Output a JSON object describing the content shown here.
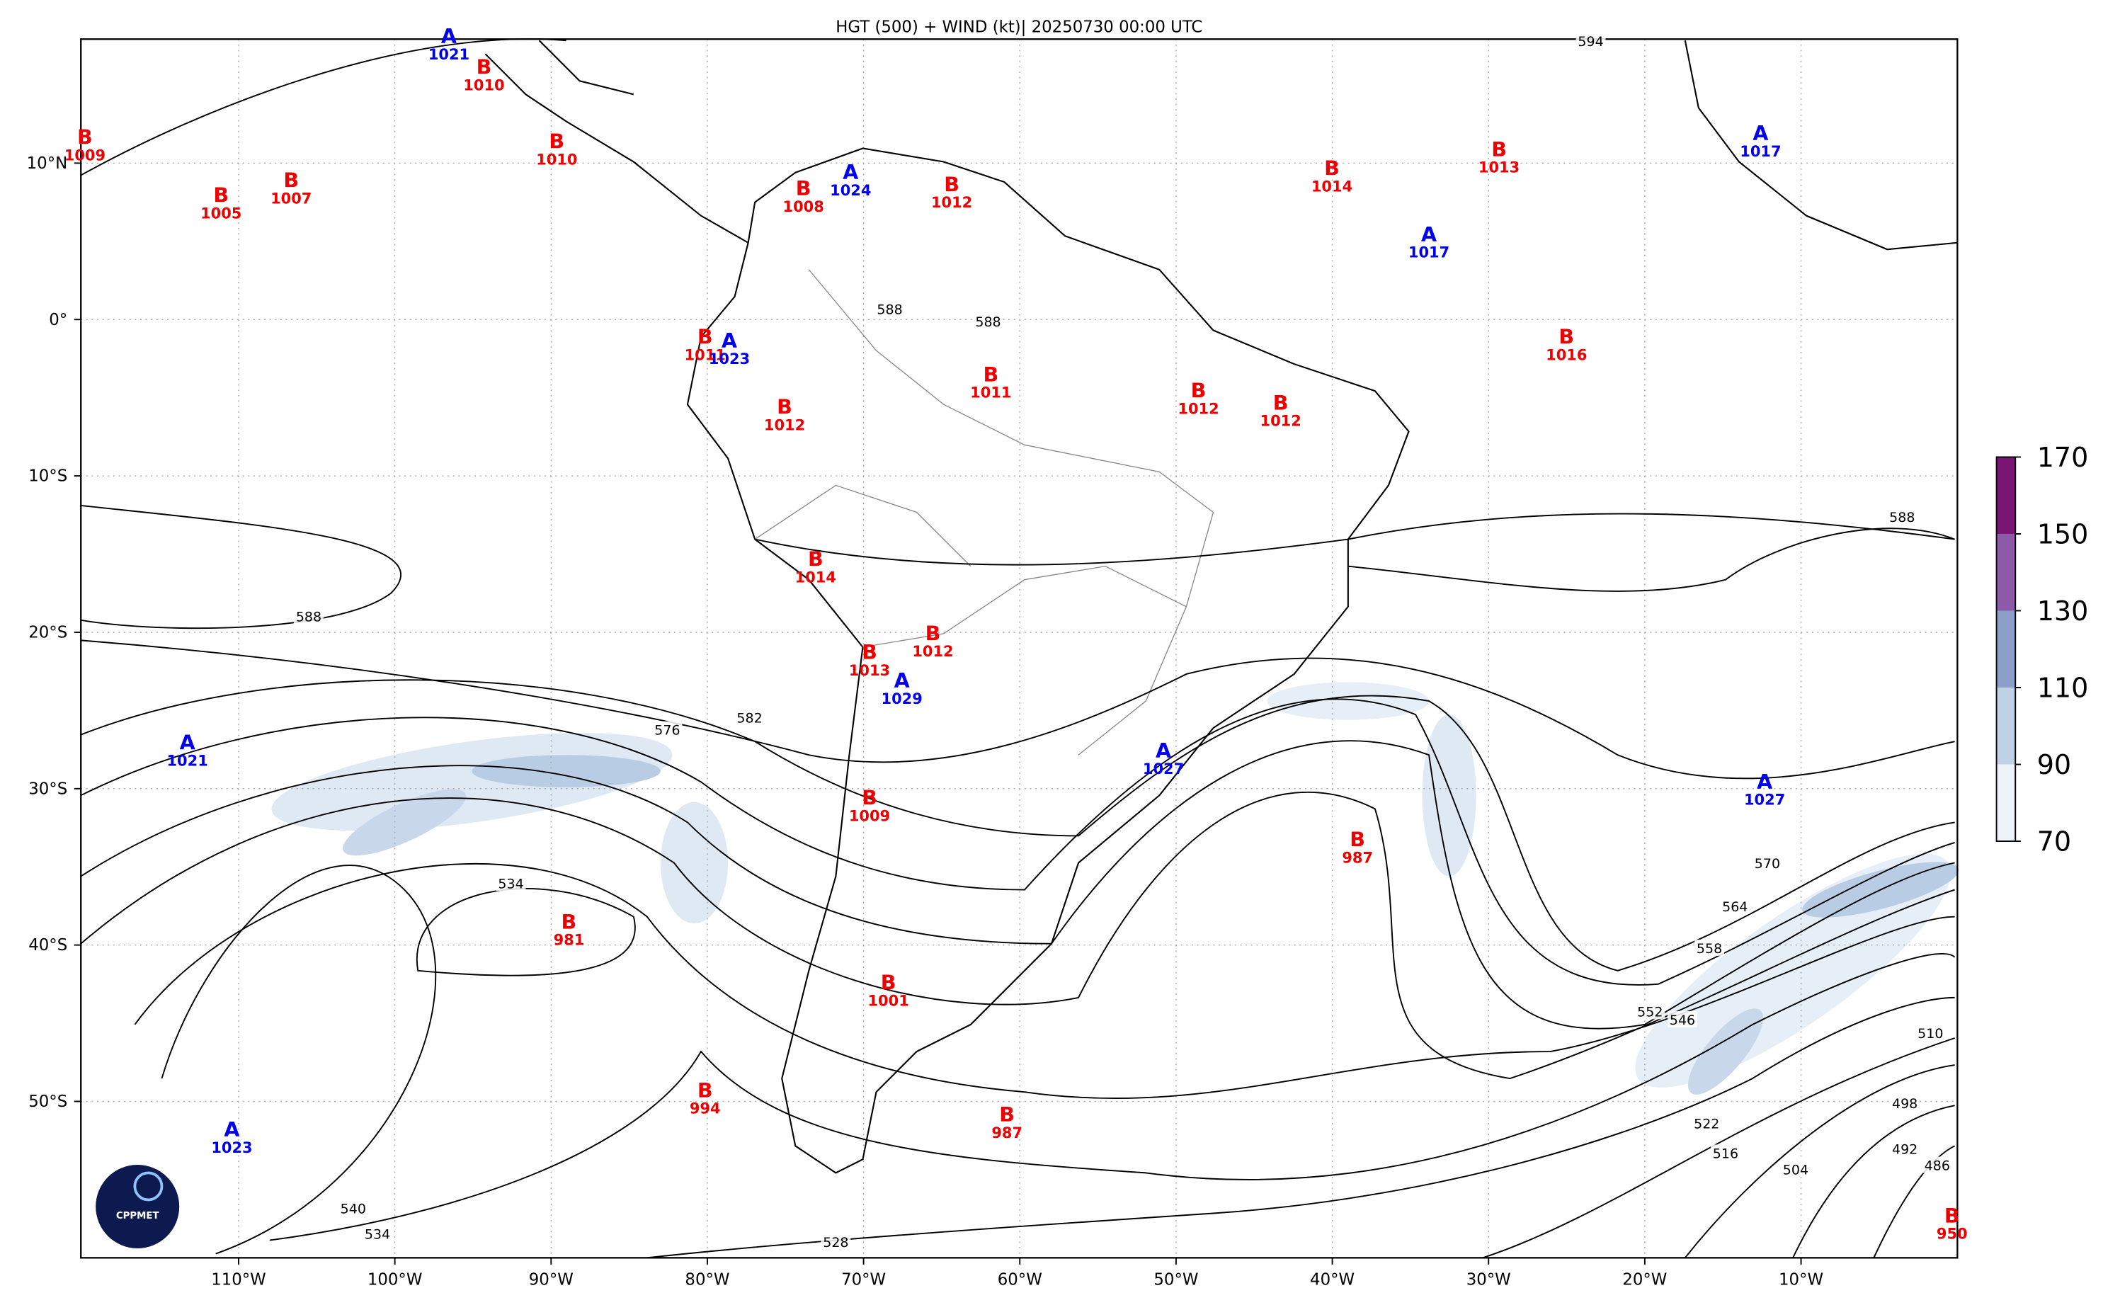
{
  "title": "HGT (500) + WIND (kt)| 20250730 00:00 UTC",
  "x_axis_labels": [
    "110°W",
    "100°W",
    "90°W",
    "80°W",
    "70°W",
    "60°W",
    "50°W",
    "40°W",
    "30°W",
    "20°W",
    "10°W"
  ],
  "y_axis_labels": [
    "10°N",
    "0°",
    "10°S",
    "20°S",
    "30°S",
    "40°S",
    "50°S"
  ],
  "centers": [
    {
      "letter": "A",
      "value": 1021
    },
    {
      "letter": "B",
      "value": 1010
    },
    {
      "letter": "B",
      "value": 1009
    },
    {
      "letter": "B",
      "value": 1010
    },
    {
      "letter": "B",
      "value": 1005
    },
    {
      "letter": "B",
      "value": 1007
    },
    {
      "letter": "A",
      "value": 1024
    },
    {
      "letter": "B",
      "value": 1008
    },
    {
      "letter": "B",
      "value": 1012
    },
    {
      "letter": "B",
      "value": 1014
    },
    {
      "letter": "B",
      "value": 1013
    },
    {
      "letter": "A",
      "value": 1017
    },
    {
      "letter": "A",
      "value": 1017
    },
    {
      "letter": "B",
      "value": 1011
    },
    {
      "letter": "A",
      "value": 1023
    },
    {
      "letter": "B",
      "value": 1016
    },
    {
      "letter": "B",
      "value": 1011
    },
    {
      "letter": "B",
      "value": 1012
    },
    {
      "letter": "B",
      "value": 1012
    },
    {
      "letter": "B",
      "value": 1012
    },
    {
      "letter": "B",
      "value": 1014
    },
    {
      "letter": "B",
      "value": 1012
    },
    {
      "letter": "B",
      "value": 1013
    },
    {
      "letter": "A",
      "value": 1029
    },
    {
      "letter": "A",
      "value": 1021
    },
    {
      "letter": "A",
      "value": 1027
    },
    {
      "letter": "A",
      "value": 1027
    },
    {
      "letter": "B",
      "value": 1009
    },
    {
      "letter": "B",
      "value": 987
    },
    {
      "letter": "B",
      "value": 981
    },
    {
      "letter": "B",
      "value": 1001
    },
    {
      "letter": "B",
      "value": 994
    },
    {
      "letter": "B",
      "value": 987
    },
    {
      "letter": "A",
      "value": 1023
    },
    {
      "letter": "B",
      "value": 950
    }
  ],
  "contour_labels": [
    594,
    588,
    588,
    588,
    588,
    582,
    576,
    570,
    564,
    558,
    552,
    546,
    534,
    540,
    534,
    528,
    522,
    516,
    510,
    504,
    498,
    492,
    486
  ],
  "colorbar": {
    "lim": [
      70,
      170
    ],
    "ticks": [
      70,
      90,
      110,
      130,
      150,
      170
    ],
    "colors": [
      "#eef3f9",
      "#c0d2e6",
      "#8c9fc9",
      "#8c5aa8",
      "#7b1574"
    ]
  },
  "logo": "CPPMET"
}
